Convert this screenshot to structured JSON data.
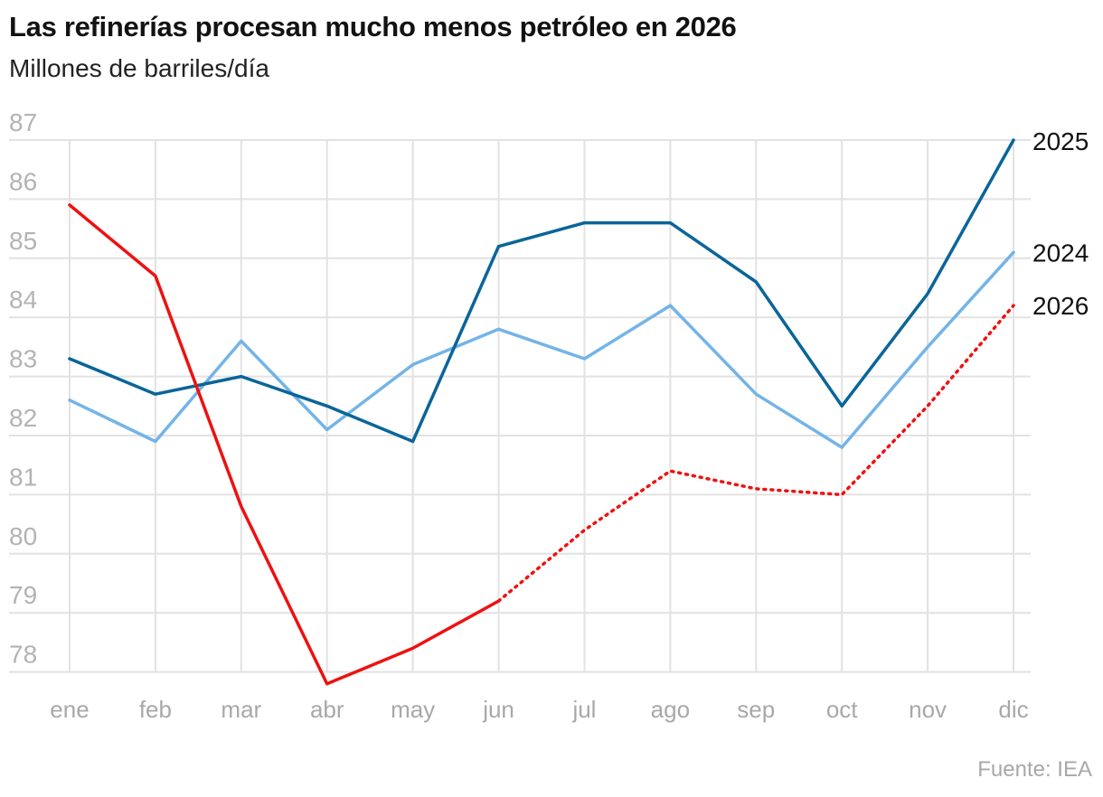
{
  "header": {
    "title": "Las refinerías procesan mucho menos petróleo en 2026",
    "subtitle": "Millones de barriles/día"
  },
  "footer": {
    "source": "Fuente: IEA"
  },
  "chart_data": {
    "type": "line",
    "title": "Las refinerías procesan mucho menos petróleo en 2026",
    "subtitle": "Millones de barriles/día",
    "x": [
      "ene",
      "feb",
      "mar",
      "abr",
      "may",
      "jun",
      "jul",
      "ago",
      "sep",
      "oct",
      "nov",
      "dic"
    ],
    "y_ticks": [
      78,
      79,
      80,
      81,
      82,
      83,
      84,
      85,
      86,
      87
    ],
    "ylim": [
      77.8,
      87
    ],
    "grid": true,
    "legend": "direct labels at right end of lines",
    "series": [
      {
        "name": "2025",
        "color": "#0a6599",
        "style": "solid",
        "values": [
          83.3,
          82.7,
          83.0,
          82.5,
          81.9,
          85.2,
          85.6,
          85.6,
          84.6,
          82.5,
          84.4,
          87.0
        ]
      },
      {
        "name": "2024",
        "color": "#73b4e8",
        "style": "solid",
        "values": [
          82.6,
          81.9,
          83.6,
          82.1,
          83.2,
          83.8,
          83.3,
          84.2,
          82.7,
          81.8,
          83.5,
          85.1
        ]
      },
      {
        "name": "2026",
        "color": "#ee1111",
        "style": "solid-then-dotted",
        "dotted_from_index": 5,
        "values": [
          85.9,
          84.7,
          80.8,
          77.8,
          78.4,
          79.2,
          80.4,
          81.4,
          81.1,
          81.0,
          82.5,
          84.2
        ]
      }
    ]
  }
}
